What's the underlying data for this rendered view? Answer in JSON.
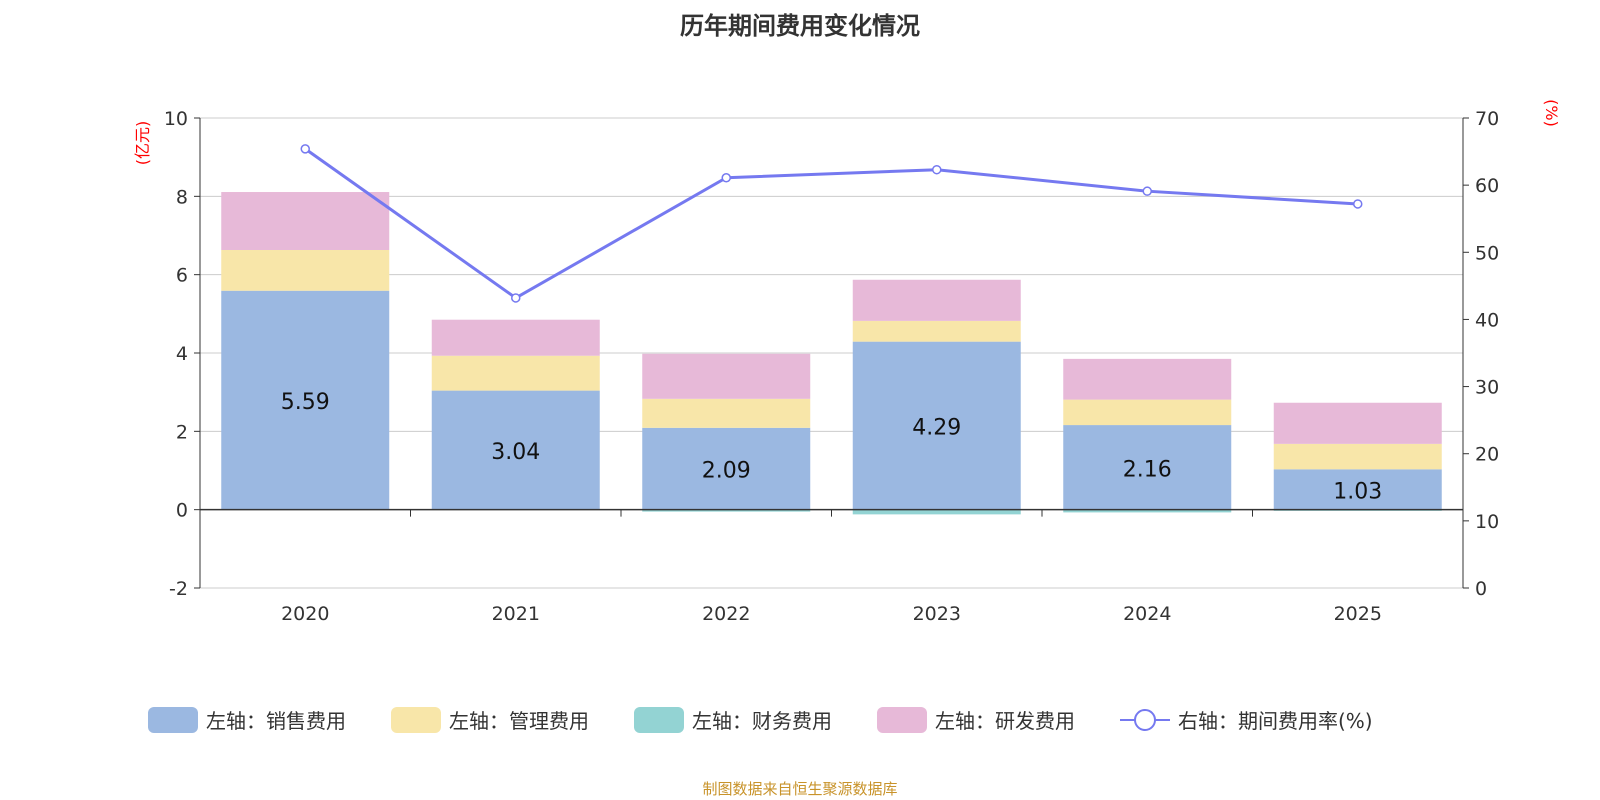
{
  "title": "历年期间费用变化情况",
  "source": "制图数据来自恒生聚源数据库",
  "chart_data": {
    "type": "bar",
    "stacked": true,
    "categories": [
      "2020",
      "2021",
      "2022",
      "2023",
      "2024",
      "2025"
    ],
    "left_axis": {
      "label": "(亿元)",
      "ylim": [
        -2,
        10
      ],
      "ticks": [
        "-2",
        "0",
        "2",
        "4",
        "6",
        "8",
        "10"
      ]
    },
    "right_axis": {
      "label": "(%)",
      "ylim": [
        0,
        70
      ],
      "ticks": [
        "0",
        "10",
        "20",
        "30",
        "40",
        "50",
        "60",
        "70"
      ]
    },
    "series": [
      {
        "name": "左轴：销售费用",
        "color": "#9bb8e1",
        "values": [
          5.59,
          3.04,
          2.09,
          4.29,
          2.16,
          1.03
        ],
        "labels": [
          "5.59",
          "3.04",
          "2.09",
          "4.29",
          "2.16",
          "1.03"
        ]
      },
      {
        "name": "左轴：管理费用",
        "color": "#f8e6a9",
        "values": [
          1.04,
          0.89,
          0.74,
          0.53,
          0.65,
          0.65
        ]
      },
      {
        "name": "左轴：财务费用",
        "color": "#93d3d3",
        "values": [
          0.0,
          0.0,
          -0.05,
          -0.12,
          -0.07,
          -0.03
        ]
      },
      {
        "name": "左轴：研发费用",
        "color": "#e7b9d8",
        "values": [
          1.48,
          0.92,
          1.15,
          1.05,
          1.04,
          1.05
        ]
      }
    ],
    "line": {
      "name": "右轴：期间费用率(%)",
      "color": "#7579f0",
      "values": [
        65.4,
        43.2,
        61.1,
        62.3,
        59.1,
        57.2
      ]
    },
    "grid": true,
    "legend_position": "bottom"
  }
}
